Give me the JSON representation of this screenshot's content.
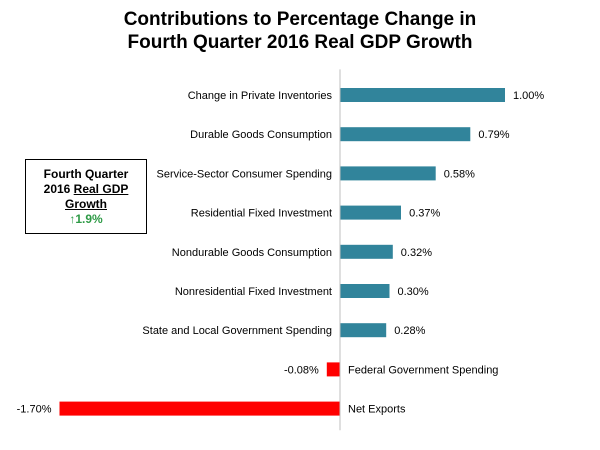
{
  "chart_data": {
    "type": "bar",
    "orientation": "horizontal",
    "title_lines": [
      "Contributions to Percentage Change in",
      "Fourth Quarter 2016 Real GDP Growth"
    ],
    "categories": [
      "Change in Private Inventories",
      "Durable Goods Consumption",
      "Service-Sector Consumer Spending",
      "Residential Fixed Investment",
      "Nondurable Goods Consumption",
      "Nonresidential Fixed Investment",
      "State and Local Government Spending",
      "Federal Government Spending",
      "Net Exports"
    ],
    "values": [
      1.0,
      0.79,
      0.58,
      0.37,
      0.32,
      0.3,
      0.28,
      -0.08,
      -1.7
    ],
    "value_labels": [
      "1.00%",
      "0.79%",
      "0.58%",
      "0.37%",
      "0.32%",
      "0.30%",
      "0.28%",
      "-0.08%",
      "-1.70%"
    ],
    "xlabel": "",
    "ylabel": "",
    "xlim": [
      -1.7,
      1.0
    ],
    "grid": false,
    "legend": "none",
    "colors": {
      "positive": "#31849b",
      "negative": "#ff0000",
      "axis": "#bfbfbf"
    }
  },
  "callout": {
    "line1": "Fourth Quarter",
    "line2_prefix": "2016 ",
    "line2_underlined": "Real GDP",
    "line3": "Growth",
    "growth_arrow": "↑",
    "growth_value": "1.9%",
    "growth_color": "#2e9a46"
  }
}
